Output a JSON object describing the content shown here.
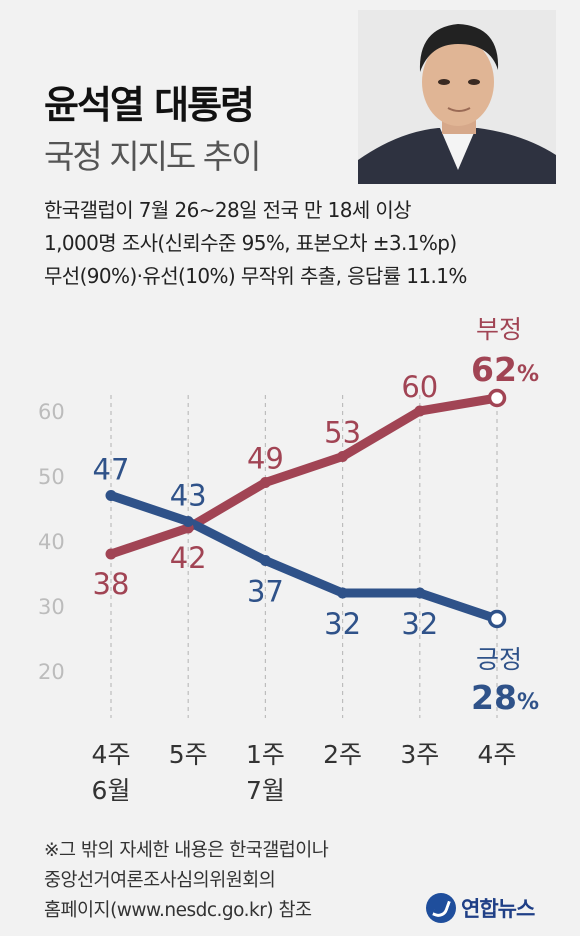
{
  "header": {
    "title": "윤석열 대통령",
    "subtitle": "국정 지지도 추이"
  },
  "info_lines": [
    "한국갤럽이 7월 26~28일 전국 만 18세 이상",
    "1,000명 조사(신뢰수준 95%, 표본오차 ±3.1%p)",
    "무선(90%)·유선(10%) 무작위 추출, 응답률 11.1%"
  ],
  "chart_data": {
    "type": "line",
    "categories": [
      [
        "4주",
        "6월"
      ],
      [
        "5주",
        ""
      ],
      [
        "1주",
        "7월"
      ],
      [
        "2주",
        ""
      ],
      [
        "3주",
        ""
      ],
      [
        "4주",
        ""
      ]
    ],
    "series": [
      {
        "name": "부정",
        "values": [
          38,
          42,
          49,
          53,
          60,
          62
        ],
        "color": "#a14454"
      },
      {
        "name": "긍정",
        "values": [
          47,
          43,
          37,
          32,
          32,
          28
        ],
        "color": "#2f5289"
      }
    ],
    "end_labels": {
      "negative": {
        "name": "부정",
        "value": "62",
        "unit": "%"
      },
      "positive": {
        "name": "긍정",
        "value": "28",
        "unit": "%"
      }
    },
    "y_ticks": [
      60,
      50,
      40,
      30,
      20
    ],
    "ylim": [
      20,
      60
    ],
    "grid": "vertical dashed"
  },
  "footnote_lines": [
    "※그 밖의 자세한 내용은 한국갤럽이나",
    "중앙선거여론조사심의위원회의",
    "홈페이지(www.nesdc.go.kr) 참조"
  ],
  "logo_text": "연합뉴스"
}
